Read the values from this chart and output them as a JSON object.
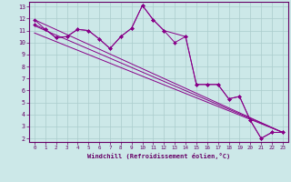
{
  "title": "",
  "xlabel": "Windchill (Refroidissement éolien,°C)",
  "bg_color": "#cce8e8",
  "grid_color": "#aacccc",
  "line_color": "#880088",
  "spine_color": "#660066",
  "xlim": [
    -0.5,
    23.5
  ],
  "ylim": [
    1.7,
    13.4
  ],
  "xticks": [
    0,
    1,
    2,
    3,
    4,
    5,
    6,
    7,
    8,
    9,
    10,
    11,
    12,
    13,
    14,
    15,
    16,
    17,
    18,
    19,
    20,
    21,
    22,
    23
  ],
  "yticks": [
    2,
    3,
    4,
    5,
    6,
    7,
    8,
    9,
    10,
    11,
    12,
    13
  ],
  "series1_x": [
    0,
    1,
    2,
    3,
    4,
    5,
    6,
    7,
    8,
    9,
    10,
    11,
    12,
    14,
    15,
    16,
    17,
    18,
    19,
    20,
    21,
    22,
    23
  ],
  "series1_y": [
    11.9,
    11.1,
    10.4,
    10.5,
    11.1,
    11.0,
    10.3,
    9.5,
    10.5,
    11.2,
    13.1,
    11.9,
    11.0,
    10.5,
    6.5,
    6.5,
    6.5,
    5.3,
    5.5,
    3.5,
    2.0,
    2.5,
    2.5
  ],
  "series2_x": [
    0,
    1,
    2,
    3,
    4,
    5,
    6,
    7,
    8,
    9,
    10,
    11,
    12,
    13,
    14,
    15,
    16,
    17,
    18,
    19,
    20,
    21,
    22,
    23
  ],
  "series2_y": [
    11.5,
    11.1,
    10.4,
    10.5,
    11.1,
    11.0,
    10.3,
    9.5,
    10.5,
    11.2,
    13.1,
    11.9,
    11.0,
    10.0,
    10.5,
    6.5,
    6.5,
    6.5,
    5.3,
    5.5,
    3.5,
    2.0,
    2.5,
    2.5
  ],
  "diag_lines": [
    {
      "x": [
        0,
        23
      ],
      "y": [
        11.9,
        2.5
      ]
    },
    {
      "x": [
        0,
        23
      ],
      "y": [
        11.4,
        2.5
      ]
    },
    {
      "x": [
        0,
        23
      ],
      "y": [
        10.8,
        2.5
      ]
    }
  ]
}
